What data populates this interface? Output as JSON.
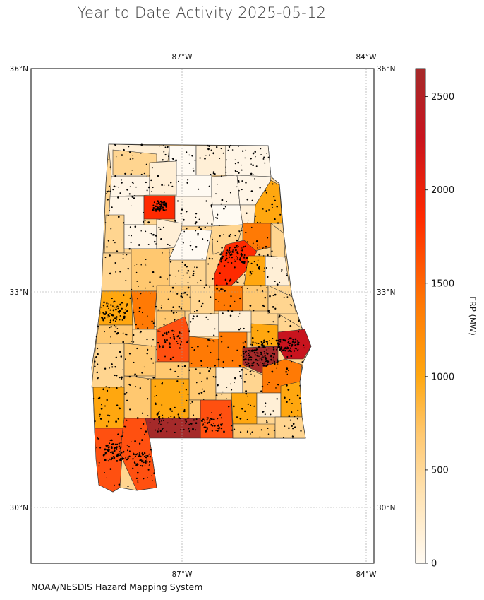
{
  "title": "Year to Date Activity 2025-05-12",
  "credit": "NOAA/NESDIS Hazard Mapping System",
  "map": {
    "lon_labels": [
      "87°W",
      "84°W"
    ],
    "lat_labels": [
      "36°N",
      "33°N",
      "30°N"
    ]
  },
  "colorbar": {
    "label": "FRP (MW)",
    "ticks": [
      "0",
      "500",
      "1000",
      "1500",
      "2000",
      "2500"
    ],
    "tick_values": [
      0,
      500,
      1000,
      1500,
      2000,
      2500
    ],
    "max": 2650,
    "colors": [
      "#fffaf2",
      "#ffe3b3",
      "#ffc870",
      "#ffa70f",
      "#ff7a05",
      "#ff2a00",
      "#c8141e",
      "#a52a2a"
    ]
  }
}
